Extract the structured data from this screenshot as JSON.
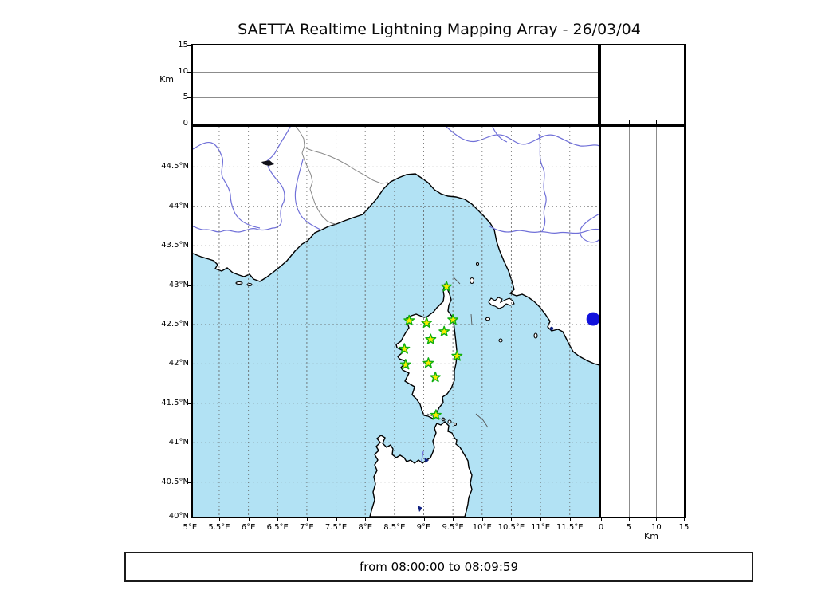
{
  "title": "SAETTA Realtime Lightning Mapping Array - 26/03/04",
  "footer": {
    "text": "from 08:00:00 to 08:09:59"
  },
  "axes": {
    "km_label_left": "Km",
    "km_label_bottom": "Km",
    "lat_ticks": [
      {
        "label": "44.5°N",
        "value": 44.5
      },
      {
        "label": "44°N",
        "value": 44.0
      },
      {
        "label": "43.5°N",
        "value": 43.5
      },
      {
        "label": "43°N",
        "value": 43.0
      },
      {
        "label": "42.5°N",
        "value": 42.5
      },
      {
        "label": "42°N",
        "value": 42.0
      },
      {
        "label": "41.5°N",
        "value": 41.5
      },
      {
        "label": "41°N",
        "value": 41.0
      },
      {
        "label": "40.5°N",
        "value": 40.5
      },
      {
        "label": "40°N",
        "value": 40.0
      }
    ],
    "lon_ticks": [
      {
        "label": "5°E",
        "value": 5.0
      },
      {
        "label": "5.5°E",
        "value": 5.5
      },
      {
        "label": "6°E",
        "value": 6.0
      },
      {
        "label": "6.5°E",
        "value": 6.5
      },
      {
        "label": "7°E",
        "value": 7.0
      },
      {
        "label": "7.5°E",
        "value": 7.5
      },
      {
        "label": "8°E",
        "value": 8.0
      },
      {
        "label": "8.5°E",
        "value": 8.5
      },
      {
        "label": "9°E",
        "value": 9.0
      },
      {
        "label": "9.5°E",
        "value": 9.5
      },
      {
        "label": "10°E",
        "value": 10.0
      },
      {
        "label": "10.5°E",
        "value": 10.5
      },
      {
        "label": "11°E",
        "value": 11.0
      },
      {
        "label": "11.5°E",
        "value": 11.5
      }
    ],
    "km_ticks": [
      {
        "label": "0",
        "value": 0
      },
      {
        "label": "5",
        "value": 5
      },
      {
        "label": "10",
        "value": 10
      },
      {
        "label": "15",
        "value": 15
      }
    ]
  },
  "chart_data": {
    "type": "scatter",
    "title": "SAETTA Realtime Lightning Mapping Array - 26/03/04",
    "time_window": {
      "from": "08:00:00",
      "to": "08:09:59"
    },
    "map": {
      "lon_range_deg_e": [
        5.0,
        12.0
      ],
      "lat_range_deg_n": [
        40.0,
        45.0
      ],
      "grid_step_deg": 0.5,
      "grid_style": "dashed"
    },
    "altitude_axis_km": {
      "min": 0,
      "max": 15,
      "gridlines_km": [
        5,
        10
      ]
    },
    "stations": [
      {
        "lon": 9.39,
        "lat": 42.98
      },
      {
        "lon": 8.75,
        "lat": 42.55
      },
      {
        "lon": 9.05,
        "lat": 42.52
      },
      {
        "lon": 9.5,
        "lat": 42.56
      },
      {
        "lon": 9.35,
        "lat": 42.41
      },
      {
        "lon": 9.12,
        "lat": 42.31
      },
      {
        "lon": 8.67,
        "lat": 42.19
      },
      {
        "lon": 9.57,
        "lat": 42.1
      },
      {
        "lon": 8.69,
        "lat": 41.99
      },
      {
        "lon": 9.08,
        "lat": 42.01
      },
      {
        "lon": 9.2,
        "lat": 41.83
      },
      {
        "lon": 9.21,
        "lat": 41.35
      }
    ],
    "events": [
      {
        "lon": 11.9,
        "lat": 42.57,
        "marker": "circle"
      }
    ]
  },
  "colors": {
    "sea": "#b2e2f4",
    "land": "#ffffff",
    "coastline": "#000000",
    "river": "#7070d8",
    "country_border": "#8a8a8a",
    "map_grid": "#606060",
    "panel_grid": "#8c8c8c",
    "lake": "#102080",
    "star_fill": "#f8ec00",
    "star_stroke": "#0faf0f",
    "event_dot": "#1212dd"
  }
}
